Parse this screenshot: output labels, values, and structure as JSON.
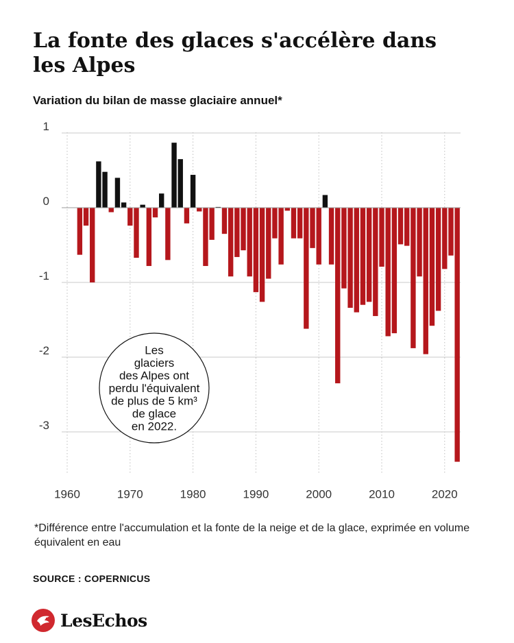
{
  "title": "La fonte des glaces s'accélère dans les Alpes",
  "subtitle": "Variation du bilan de masse glaciaire annuel*",
  "footnote": "*Différence entre l'accumulation et la fonte de la neige et de la glace, exprimée en volume équivalent en eau",
  "source": "SOURCE : COPERNICUS",
  "brand": "LesEchos",
  "colors": {
    "negative": "#b5171c",
    "positive": "#111111",
    "grid": "#c8c8c8",
    "brand": "#d0282e"
  },
  "chart_data": {
    "type": "bar",
    "title": "Variation du bilan de masse glaciaire annuel*",
    "xlabel": "",
    "ylabel": "",
    "ylim": [
      -3.5,
      1
    ],
    "yticks": [
      1,
      0,
      -1,
      -2,
      -3
    ],
    "xticks": [
      1960,
      1970,
      1980,
      1990,
      2000,
      2010,
      2020
    ],
    "grid": "vertical dotted at decades",
    "x": [
      1962,
      1963,
      1964,
      1965,
      1966,
      1967,
      1968,
      1969,
      1970,
      1971,
      1972,
      1973,
      1974,
      1975,
      1976,
      1977,
      1978,
      1979,
      1980,
      1981,
      1982,
      1983,
      1984,
      1985,
      1986,
      1987,
      1988,
      1989,
      1990,
      1991,
      1992,
      1993,
      1994,
      1995,
      1996,
      1997,
      1998,
      1999,
      2000,
      2001,
      2002,
      2003,
      2004,
      2005,
      2006,
      2007,
      2008,
      2009,
      2010,
      2011,
      2012,
      2013,
      2014,
      2015,
      2016,
      2017,
      2018,
      2019,
      2020,
      2021,
      2022
    ],
    "values": [
      -0.63,
      -0.24,
      -1.0,
      0.62,
      0.48,
      -0.06,
      0.4,
      0.07,
      -0.24,
      -0.67,
      0.04,
      -0.78,
      -0.13,
      0.19,
      -0.7,
      0.87,
      0.65,
      -0.21,
      0.44,
      -0.05,
      -0.78,
      -0.43,
      0.01,
      -0.35,
      -0.92,
      -0.66,
      -0.57,
      -0.92,
      -1.13,
      -1.26,
      -0.95,
      -0.41,
      -0.76,
      -0.04,
      -0.41,
      -0.41,
      -1.62,
      -0.54,
      -0.76,
      0.17,
      -0.76,
      -2.35,
      -1.08,
      -1.34,
      -1.4,
      -1.3,
      -1.26,
      -1.45,
      -0.79,
      -1.72,
      -1.68,
      -0.49,
      -0.51,
      -1.88,
      -0.92,
      -1.96,
      -1.58,
      -1.38,
      -0.82,
      -0.64,
      -3.4
    ],
    "annotation": {
      "lines": [
        "Les",
        "glaciers",
        "des Alpes ont",
        "perdu l'équivalent",
        "de plus de 5 km³",
        "de glace",
        "en 2022."
      ]
    }
  }
}
